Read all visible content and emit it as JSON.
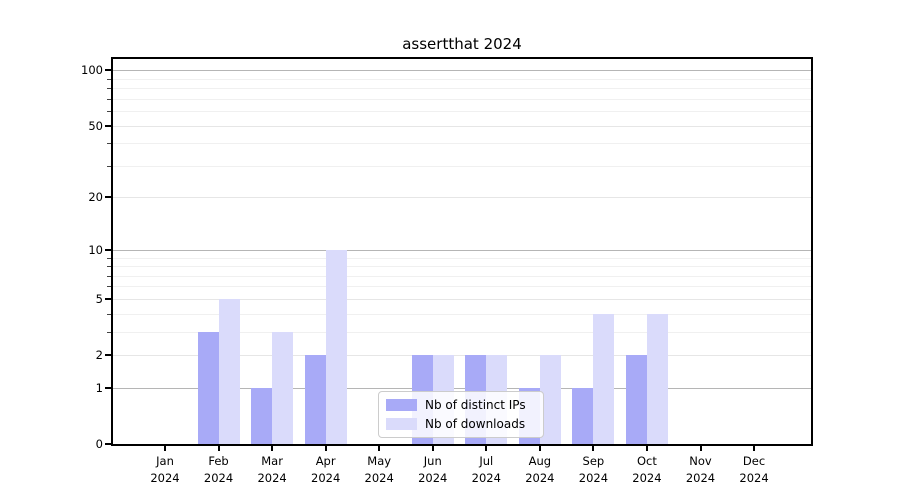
{
  "chart_data": {
    "type": "bar",
    "title": "assertthat 2024",
    "year_label": "2024",
    "categories": [
      "Jan",
      "Feb",
      "Mar",
      "Apr",
      "May",
      "Jun",
      "Jul",
      "Aug",
      "Sep",
      "Oct",
      "Nov",
      "Dec"
    ],
    "series": [
      {
        "name": "Nb of distinct IPs",
        "color": "#a8aaf7",
        "values": [
          0,
          3,
          1,
          2,
          0,
          2,
          2,
          1,
          1,
          2,
          0,
          0
        ]
      },
      {
        "name": "Nb of downloads",
        "color": "#dadbfb",
        "values": [
          0,
          5,
          3,
          10,
          0,
          2,
          2,
          2,
          4,
          4,
          0,
          0
        ]
      }
    ],
    "y_axis": {
      "scale": "log1p",
      "tick_labels": [
        "0",
        "1",
        "2",
        "5",
        "10",
        "20",
        "50",
        "100"
      ],
      "ticks": [
        0,
        1,
        2,
        5,
        10,
        20,
        50,
        100
      ],
      "max": 115,
      "decade_gridlines": [
        1,
        10,
        100
      ],
      "labeled_gridlines": [
        2,
        5,
        20,
        50
      ],
      "minor_gridlines": [
        3,
        4,
        6,
        7,
        8,
        9,
        30,
        40,
        60,
        70,
        80,
        90
      ]
    },
    "x_axis": {
      "label_line2": "2024"
    },
    "legend": {
      "position": "lower center"
    },
    "colors": {
      "background": "#ffffff",
      "axis": "#000000",
      "grid_decade": "#b5b5b5",
      "grid_labeled": "#e6e6e6",
      "grid_minor": "#f0f0f0",
      "legend_border": "#cccccc"
    },
    "grid": true
  }
}
